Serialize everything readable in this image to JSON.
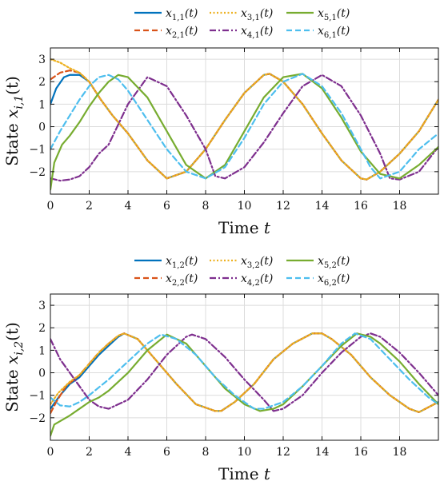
{
  "chart_data": [
    {
      "type": "line",
      "xlabel": "Time t",
      "ylabel": "State x_{i,1}(t)",
      "xlim": [
        0,
        20
      ],
      "ylim": [
        -3,
        3.5
      ],
      "xticks": [
        "0",
        "2",
        "4",
        "6",
        "8",
        "10",
        "12",
        "14",
        "16",
        "18"
      ],
      "yticks": [
        "-2",
        "-1",
        "0",
        "1",
        "2",
        "3"
      ],
      "grid": true,
      "legend_placement": "top-center, 3 columns",
      "series": [
        {
          "name": "x1,1(t)",
          "color": "#0072BD",
          "style": "solid",
          "x": [
            0,
            0.3,
            0.7,
            1.0,
            1.5,
            2.0,
            2.6,
            3.2,
            4.0,
            5.0,
            6.0,
            7.0,
            8.0,
            9.0,
            10.0,
            11.0,
            11.3,
            12.0,
            13.0,
            14.0,
            15.0,
            16.0,
            16.3,
            17.0,
            18.0,
            19.0,
            20.0
          ],
          "y": [
            1.0,
            1.7,
            2.2,
            2.3,
            2.3,
            2.0,
            1.2,
            0.5,
            -0.3,
            -1.5,
            -2.3,
            -2.0,
            -1.0,
            0.3,
            1.5,
            2.3,
            2.35,
            2.0,
            1.0,
            -0.3,
            -1.5,
            -2.3,
            -2.35,
            -2.0,
            -1.2,
            -0.2,
            1.2
          ]
        },
        {
          "name": "x2,1(t)",
          "color": "#D95319",
          "style": "dashed",
          "x": [
            0,
            0.5,
            1.0,
            1.5,
            2.0,
            2.6,
            3.2,
            4.0,
            5.0,
            6.0,
            7.0,
            8.0,
            9.0,
            10.0,
            11.0,
            11.3,
            12.0,
            13.0,
            14.0,
            15.0,
            16.0,
            16.3,
            17.0,
            18.0,
            19.0,
            20.0
          ],
          "y": [
            2.1,
            2.4,
            2.5,
            2.4,
            2.0,
            1.2,
            0.5,
            -0.3,
            -1.5,
            -2.3,
            -2.0,
            -1.0,
            0.3,
            1.5,
            2.3,
            2.35,
            2.0,
            1.0,
            -0.3,
            -1.5,
            -2.3,
            -2.35,
            -2.0,
            -1.2,
            -0.2,
            1.2
          ]
        },
        {
          "name": "x3,1(t)",
          "color": "#EDB120",
          "style": "dotted",
          "x": [
            0,
            0.5,
            1.0,
            1.5,
            2.0,
            2.6,
            3.2,
            4.0,
            5.0,
            6.0,
            7.0,
            8.0,
            9.0,
            10.0,
            11.0,
            11.3,
            12.0,
            13.0,
            14.0,
            15.0,
            16.0,
            16.3,
            17.0,
            18.0,
            19.0,
            20.0
          ],
          "y": [
            3.0,
            2.85,
            2.6,
            2.4,
            2.0,
            1.2,
            0.5,
            -0.3,
            -1.5,
            -2.3,
            -2.0,
            -1.0,
            0.3,
            1.5,
            2.3,
            2.35,
            2.0,
            1.0,
            -0.3,
            -1.5,
            -2.3,
            -2.35,
            -2.0,
            -1.2,
            -0.2,
            1.2
          ]
        },
        {
          "name": "x4,1(t)",
          "color": "#7E2F8E",
          "style": "dashdot",
          "x": [
            0,
            0.5,
            1.0,
            1.5,
            2.0,
            2.5,
            3.0,
            4.0,
            5.0,
            6.0,
            7.0,
            8.0,
            8.5,
            9.0,
            10.0,
            11.0,
            12.0,
            13.0,
            14.0,
            15.0,
            16.0,
            17.0,
            17.5,
            18.0,
            19.0,
            20.0
          ],
          "y": [
            -2.3,
            -2.4,
            -2.35,
            -2.2,
            -1.8,
            -1.2,
            -0.8,
            1.0,
            2.2,
            1.8,
            0.5,
            -1.0,
            -2.2,
            -2.3,
            -1.8,
            -0.7,
            0.6,
            1.8,
            2.3,
            1.8,
            0.5,
            -1.2,
            -2.3,
            -2.35,
            -2.0,
            -0.9
          ]
        },
        {
          "name": "x5,1(t)",
          "color": "#77AC30",
          "style": "solid",
          "x": [
            0,
            0.2,
            0.6,
            1.0,
            1.5,
            2.0,
            2.5,
            3.0,
            3.5,
            4.0,
            5.0,
            6.0,
            7.0,
            8.0,
            9.0,
            10.0,
            11.0,
            12.0,
            13.0,
            14.0,
            15.0,
            16.0,
            17.0,
            18.0,
            19.0,
            20.0
          ],
          "y": [
            -2.8,
            -1.6,
            -0.8,
            -0.4,
            0.2,
            0.9,
            1.5,
            2.0,
            2.3,
            2.2,
            1.3,
            -0.2,
            -1.7,
            -2.3,
            -1.7,
            -0.2,
            1.3,
            2.2,
            2.35,
            1.7,
            0.4,
            -1.1,
            -2.1,
            -2.3,
            -1.7,
            -0.9
          ]
        },
        {
          "name": "x6,1(t)",
          "color": "#4DBEEE",
          "style": "dashed",
          "x": [
            0,
            0.5,
            1.0,
            1.5,
            2.0,
            2.5,
            3.0,
            3.5,
            4.0,
            5.0,
            6.0,
            7.0,
            8.0,
            9.0,
            10.0,
            11.0,
            12.0,
            13.0,
            14.0,
            15.0,
            16.0,
            16.5,
            17.0,
            18.0,
            19.0,
            20.0
          ],
          "y": [
            -1.0,
            -0.2,
            0.5,
            1.2,
            1.8,
            2.2,
            2.3,
            2.1,
            1.6,
            0.3,
            -1.0,
            -2.0,
            -2.3,
            -1.8,
            -0.5,
            1.0,
            2.0,
            2.35,
            1.8,
            0.6,
            -1.0,
            -1.8,
            -2.3,
            -2.0,
            -1.0,
            -0.3
          ]
        }
      ]
    },
    {
      "type": "line",
      "xlabel": "Time t",
      "ylabel": "State x_{i,2}(t)",
      "xlim": [
        0,
        20
      ],
      "ylim": [
        -3,
        3.5
      ],
      "xticks": [
        "0",
        "2",
        "4",
        "6",
        "8",
        "10",
        "12",
        "14",
        "16",
        "18"
      ],
      "yticks": [
        "-2",
        "-1",
        "0",
        "1",
        "2",
        "3"
      ],
      "grid": true,
      "legend_placement": "top-center, 3 columns",
      "series": [
        {
          "name": "x1,2(t)",
          "color": "#0072BD",
          "style": "solid",
          "x": [
            0,
            0.5,
            1.0,
            1.5,
            2.0,
            2.5,
            3.0,
            3.5,
            3.8,
            4.5,
            5.5,
            6.5,
            7.5,
            8.5,
            8.8,
            9.5,
            10.5,
            11.5,
            12.5,
            13.5,
            14.0,
            14.5,
            15.5,
            16.5,
            17.5,
            18.5,
            19.0,
            20.0
          ],
          "y": [
            -1.6,
            -1.0,
            -0.5,
            -0.2,
            0.3,
            0.8,
            1.2,
            1.6,
            1.75,
            1.5,
            0.5,
            -0.5,
            -1.4,
            -1.7,
            -1.7,
            -1.3,
            -0.5,
            0.6,
            1.3,
            1.75,
            1.75,
            1.5,
            0.8,
            -0.2,
            -1.0,
            -1.6,
            -1.75,
            -1.3
          ]
        },
        {
          "name": "x2,2(t)",
          "color": "#D95319",
          "style": "dashed",
          "x": [
            0,
            0.3,
            0.8,
            1.5,
            2.0,
            2.5,
            3.0,
            3.5,
            3.8,
            4.5,
            5.5,
            6.5,
            7.5,
            8.5,
            8.8,
            9.5,
            10.5,
            11.5,
            12.5,
            13.5,
            14.0,
            14.5,
            15.5,
            16.5,
            17.5,
            18.5,
            19.0,
            20.0
          ],
          "y": [
            -1.8,
            -1.3,
            -0.6,
            -0.1,
            0.4,
            0.9,
            1.3,
            1.65,
            1.75,
            1.5,
            0.5,
            -0.5,
            -1.4,
            -1.7,
            -1.7,
            -1.3,
            -0.5,
            0.6,
            1.3,
            1.75,
            1.75,
            1.5,
            0.8,
            -0.2,
            -1.0,
            -1.6,
            -1.75,
            -1.3
          ]
        },
        {
          "name": "x3,2(t)",
          "color": "#EDB120",
          "style": "dotted",
          "x": [
            0,
            0.4,
            1.0,
            1.5,
            2.0,
            2.5,
            3.0,
            3.5,
            3.8,
            4.5,
            5.5,
            6.5,
            7.5,
            8.5,
            8.8,
            9.5,
            10.5,
            11.5,
            12.5,
            13.5,
            14.0,
            14.5,
            15.5,
            16.5,
            17.5,
            18.5,
            19.0,
            20.0
          ],
          "y": [
            -1.4,
            -0.9,
            -0.4,
            -0.1,
            0.4,
            0.9,
            1.3,
            1.65,
            1.75,
            1.5,
            0.5,
            -0.5,
            -1.4,
            -1.7,
            -1.7,
            -1.3,
            -0.5,
            0.6,
            1.3,
            1.75,
            1.75,
            1.5,
            0.8,
            -0.2,
            -1.0,
            -1.6,
            -1.75,
            -1.3
          ]
        },
        {
          "name": "x4,2(t)",
          "color": "#7E2F8E",
          "style": "dashdot",
          "x": [
            0,
            0.5,
            1.0,
            1.5,
            2.0,
            2.5,
            3.0,
            4.0,
            5.0,
            6.0,
            7.0,
            7.3,
            8.0,
            9.0,
            10.0,
            11.0,
            11.5,
            12.0,
            13.0,
            14.0,
            15.0,
            16.0,
            16.5,
            17.0,
            18.0,
            19.0,
            20.0
          ],
          "y": [
            1.5,
            0.6,
            0.0,
            -0.6,
            -1.2,
            -1.5,
            -1.6,
            -1.2,
            -0.3,
            0.8,
            1.6,
            1.7,
            1.5,
            0.7,
            -0.3,
            -1.2,
            -1.7,
            -1.6,
            -1.0,
            0.0,
            0.9,
            1.6,
            1.75,
            1.6,
            0.9,
            0.0,
            -1.0
          ]
        },
        {
          "name": "x5,2(t)",
          "color": "#77AC30",
          "style": "solid",
          "x": [
            0,
            0.2,
            0.6,
            1.0,
            1.5,
            2.0,
            2.5,
            3.0,
            3.5,
            4.0,
            5.0,
            6.0,
            7.0,
            8.0,
            9.0,
            10.0,
            10.8,
            11.5,
            12.0,
            13.0,
            14.0,
            15.0,
            15.8,
            16.5,
            17.0,
            18.0,
            19.0,
            20.0
          ],
          "y": [
            -2.8,
            -2.3,
            -2.1,
            -1.9,
            -1.6,
            -1.3,
            -1.1,
            -0.8,
            -0.4,
            0.0,
            1.0,
            1.7,
            1.3,
            0.3,
            -0.7,
            -1.4,
            -1.7,
            -1.6,
            -1.4,
            -0.6,
            0.3,
            1.2,
            1.75,
            1.6,
            1.3,
            0.5,
            -0.5,
            -1.4
          ]
        },
        {
          "name": "x6,2(t)",
          "color": "#4DBEEE",
          "style": "dashed",
          "x": [
            0,
            0.5,
            1.0,
            1.5,
            2.0,
            3.0,
            4.0,
            5.0,
            5.7,
            6.5,
            7.5,
            8.5,
            9.5,
            10.5,
            11.0,
            12.0,
            13.0,
            14.0,
            15.0,
            15.7,
            16.5,
            17.5,
            18.5,
            19.5,
            20.0
          ],
          "y": [
            -1.1,
            -1.45,
            -1.5,
            -1.3,
            -1.0,
            -0.3,
            0.5,
            1.3,
            1.7,
            1.5,
            0.8,
            -0.2,
            -1.0,
            -1.6,
            -1.6,
            -1.3,
            -0.6,
            0.3,
            1.3,
            1.75,
            1.5,
            0.6,
            -0.3,
            -1.1,
            -1.4
          ]
        }
      ]
    }
  ],
  "legend_labels": [
    [
      "x",
      "1,1",
      "(t)"
    ],
    [
      "x",
      "3,1",
      "(t)"
    ],
    [
      "x",
      "5,1",
      "(t)"
    ],
    [
      "x",
      "2,1",
      "(t)"
    ],
    [
      "x",
      "4,1",
      "(t)"
    ],
    [
      "x",
      "6,1",
      "(t)"
    ]
  ],
  "legend_labels_2": [
    [
      "x",
      "1,2",
      "(t)"
    ],
    [
      "x",
      "3,2",
      "(t)"
    ],
    [
      "x",
      "5,2",
      "(t)"
    ],
    [
      "x",
      "2,2",
      "(t)"
    ],
    [
      "x",
      "4,2",
      "(t)"
    ],
    [
      "x",
      "6,2",
      "(t)"
    ]
  ]
}
